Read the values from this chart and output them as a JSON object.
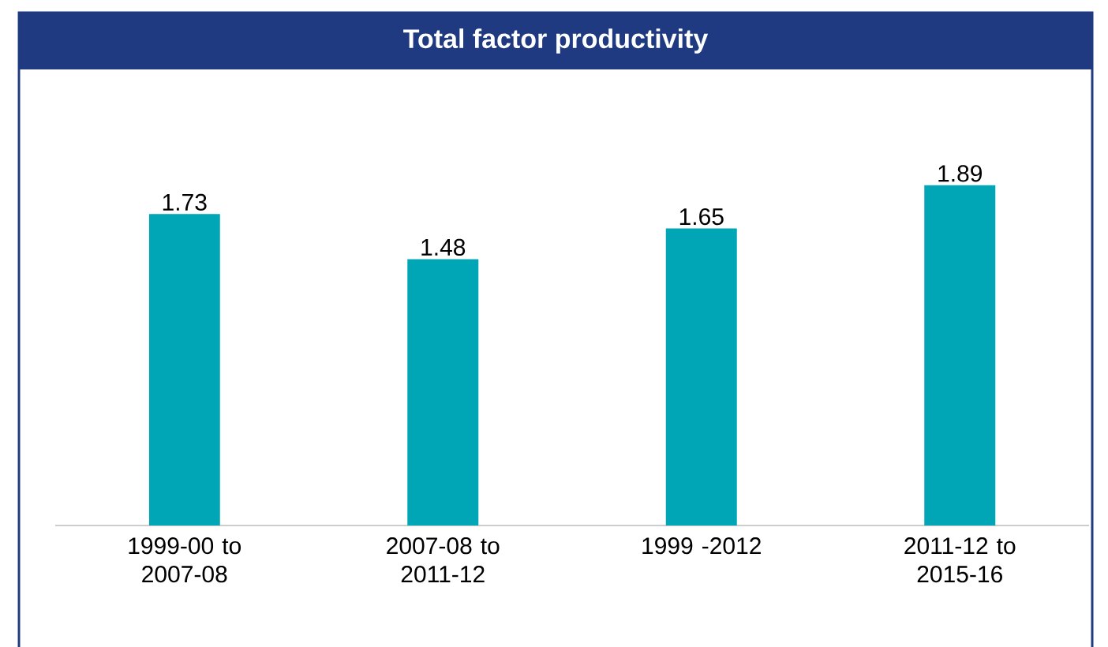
{
  "chart_data": {
    "type": "bar",
    "title": "Total factor productivity",
    "categories": [
      "1999-00 to 2007-08",
      "2007-08 to 2011-12",
      "1999 -2012",
      "2011-12 to 2015-16"
    ],
    "values": [
      1.73,
      1.48,
      1.65,
      1.89
    ],
    "color": "#00a6b6",
    "data_labels": true
  }
}
